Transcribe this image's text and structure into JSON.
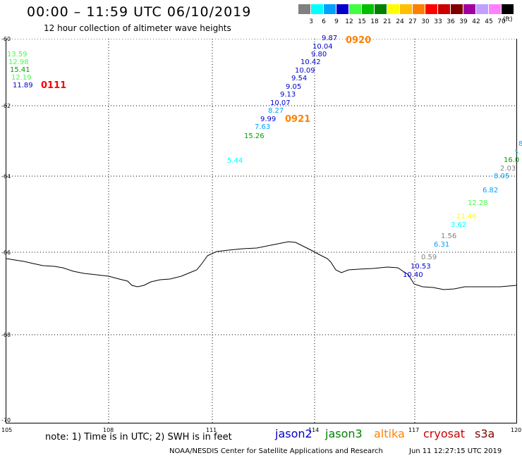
{
  "header": {
    "title": "00:00 – 11:59 UTC 06/10/2019",
    "subtitle": "12 hour collection of altimeter wave heights"
  },
  "scale": {
    "unit": "(ft)",
    "items": [
      {
        "label": "3",
        "color": "#808080"
      },
      {
        "label": "6",
        "color": "#00ffff"
      },
      {
        "label": "9",
        "color": "#00a0ff"
      },
      {
        "label": "12",
        "color": "#0000cc"
      },
      {
        "label": "15",
        "color": "#40ff40"
      },
      {
        "label": "18",
        "color": "#00c000"
      },
      {
        "label": "21",
        "color": "#008000"
      },
      {
        "label": "24",
        "color": "#ffff00"
      },
      {
        "label": "27",
        "color": "#ffc000"
      },
      {
        "label": "30",
        "color": "#ff8000"
      },
      {
        "label": "33",
        "color": "#ff0000"
      },
      {
        "label": "36",
        "color": "#cc0000"
      },
      {
        "label": "39",
        "color": "#800000"
      },
      {
        "label": "42",
        "color": "#a000a0"
      },
      {
        "label": "45",
        "color": "#c0a0ff"
      },
      {
        "label": "70",
        "color": "#ff80ff"
      },
      {
        "label": "",
        "color": "#000000"
      }
    ]
  },
  "axes": {
    "lat_labels": [
      "-60",
      "-62",
      "-64",
      "-66",
      "-68",
      "-70"
    ],
    "lon_labels": [
      "105",
      "108",
      "111",
      "114",
      "117",
      "120"
    ]
  },
  "observations": {
    "track_west": [
      {
        "value": "13.59",
        "color": "#40ff40"
      },
      {
        "value": "12.98",
        "color": "#40ff40"
      },
      {
        "value": "15.41",
        "color": "#00a000"
      },
      {
        "value": "12.19",
        "color": "#40ff40"
      },
      {
        "value": "11.89",
        "color": "#0000cc"
      }
    ],
    "track_central": [
      {
        "value": "9.87",
        "color": "#0000cc"
      },
      {
        "value": "10.04",
        "color": "#0000cc"
      },
      {
        "value": "9.80",
        "color": "#0000cc"
      },
      {
        "value": "10.42",
        "color": "#0000cc"
      },
      {
        "value": "10.09",
        "color": "#0000cc"
      },
      {
        "value": "9.54",
        "color": "#0000cc"
      },
      {
        "value": "9.05",
        "color": "#0000cc"
      },
      {
        "value": "9.13",
        "color": "#0000cc"
      },
      {
        "value": "10.07",
        "color": "#0000cc"
      },
      {
        "value": "8.27",
        "color": "#00a0ff"
      },
      {
        "value": "9.99",
        "color": "#0000cc"
      },
      {
        "value": "7.63",
        "color": "#00a0ff"
      },
      {
        "value": "15.26",
        "color": "#00a000"
      },
      {
        "value": "5.44",
        "color": "#00ffff"
      }
    ],
    "track_east": [
      {
        "value": "8",
        "color": "#00a0ff"
      },
      {
        "value": "5.",
        "color": "#00ffff"
      },
      {
        "value": "16.0",
        "color": "#00a000"
      },
      {
        "value": "2.03",
        "color": "#808080"
      },
      {
        "value": "8.05",
        "color": "#00a0ff"
      },
      {
        "value": "6.82",
        "color": "#00a0ff"
      },
      {
        "value": "12.28",
        "color": "#40ff40"
      },
      {
        "value": "21.46",
        "color": "#ffff00"
      },
      {
        "value": "3.62",
        "color": "#00ffff"
      },
      {
        "value": "1.56",
        "color": "#808080"
      },
      {
        "value": "6.31",
        "color": "#00a0ff"
      },
      {
        "value": "0.59",
        "color": "#808080"
      },
      {
        "value": "10.53",
        "color": "#0000cc"
      },
      {
        "value": "10.40",
        "color": "#0000cc"
      }
    ]
  },
  "passes": [
    {
      "time": "0111",
      "color": "#ff0000"
    },
    {
      "time": "0920",
      "color": "#ff8000"
    },
    {
      "time": "0921",
      "color": "#ff8000"
    }
  ],
  "footer": {
    "note": "note:  1) Time is in UTC;  2) SWH is in feet",
    "legend": [
      {
        "name": "jason2",
        "color": "#0000cc"
      },
      {
        "name": "jason3",
        "color": "#008000"
      },
      {
        "name": "altika",
        "color": "#ff8000"
      },
      {
        "name": "cryosat",
        "color": "#cc0000"
      },
      {
        "name": "s3a",
        "color": "#800000"
      }
    ],
    "credit": "NOAA/NESDIS Center for Satellite Applications and Research",
    "timestamp": "Jun 11 12:27:15 UTC 2019"
  }
}
